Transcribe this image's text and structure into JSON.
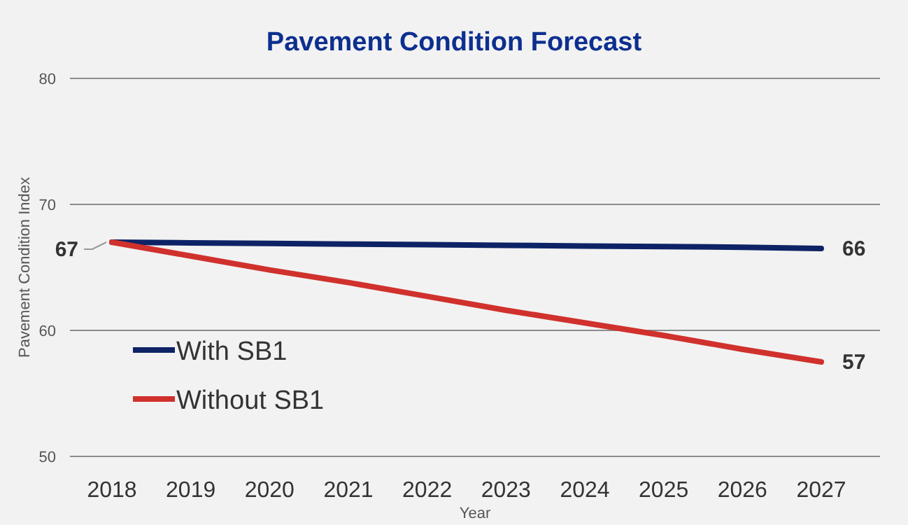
{
  "chart_data": {
    "type": "line",
    "title": "Pavement Condition Forecast",
    "xlabel": "Year",
    "ylabel": "Pavement Condition Index",
    "categories": [
      "2018",
      "2019",
      "2020",
      "2021",
      "2022",
      "2023",
      "2024",
      "2025",
      "2026",
      "2027"
    ],
    "series": [
      {
        "name": "With SB1",
        "color": "#0d2366",
        "values": [
          67,
          66.95,
          66.9,
          66.85,
          66.8,
          66.75,
          66.7,
          66.65,
          66.6,
          66.5
        ],
        "value_labels": [
          "67",
          null,
          null,
          null,
          null,
          null,
          null,
          null,
          null,
          "66"
        ]
      },
      {
        "name": "Without SB1",
        "color": "#d0312d",
        "values": [
          67,
          65.9,
          64.8,
          63.8,
          62.7,
          61.6,
          60.6,
          59.6,
          58.5,
          57.5
        ],
        "value_labels": [
          null,
          null,
          null,
          null,
          null,
          null,
          null,
          null,
          null,
          "57"
        ]
      }
    ],
    "ylim": [
      50,
      80
    ],
    "yticks": [
      50,
      60,
      70,
      80
    ],
    "grid": "y",
    "legend": "left",
    "marker": "none",
    "line_style": "solid"
  }
}
